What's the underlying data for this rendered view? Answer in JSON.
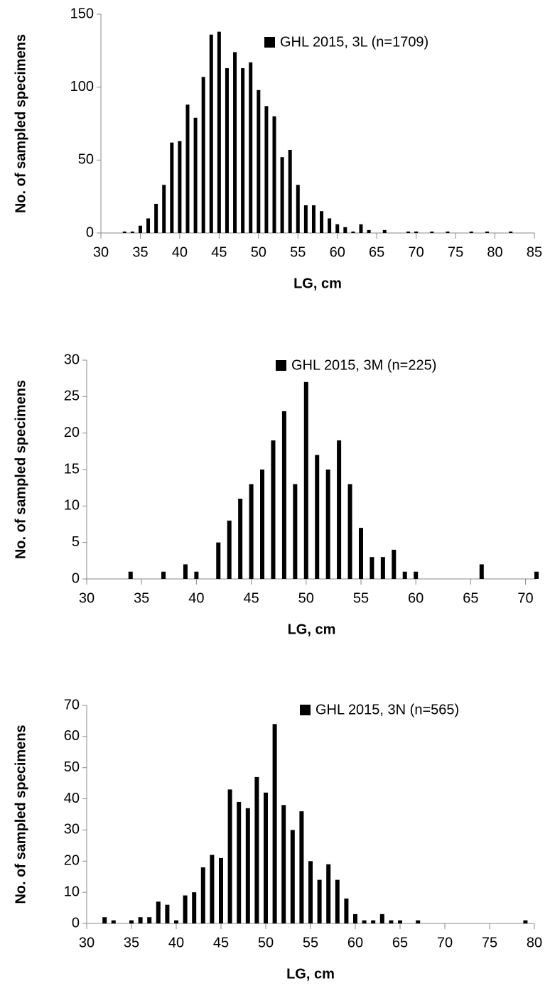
{
  "chart_data": [
    {
      "type": "bar",
      "x_label": "LG, cm",
      "y_label": "No. of sampled specimens",
      "x": [
        33,
        34,
        35,
        36,
        37,
        38,
        39,
        40,
        41,
        42,
        43,
        44,
        45,
        46,
        47,
        48,
        49,
        50,
        51,
        52,
        53,
        54,
        55,
        56,
        57,
        58,
        59,
        60,
        61,
        62,
        63,
        64,
        66,
        69,
        70,
        72,
        74,
        77,
        79,
        82
      ],
      "series": [
        {
          "name": "GHL 2015, 3L (n=1709)",
          "color": "#000000",
          "values": [
            1,
            1,
            5,
            10,
            20,
            33,
            62,
            63,
            88,
            79,
            107,
            136,
            138,
            113,
            124,
            113,
            117,
            98,
            87,
            80,
            52,
            57,
            33,
            19,
            19,
            15,
            10,
            6,
            4,
            1,
            6,
            2,
            2,
            1,
            1,
            1,
            1,
            1,
            1,
            1
          ]
        }
      ],
      "xlim": [
        30,
        85
      ],
      "xticks": [
        30,
        35,
        40,
        45,
        50,
        55,
        60,
        65,
        70,
        75,
        80,
        85
      ],
      "ylim": [
        0,
        150
      ],
      "yticks": [
        0,
        50,
        100,
        150
      ],
      "legend": "top-right"
    },
    {
      "type": "bar",
      "x_label": "LG, cm",
      "y_label": "No. of sampled specimens",
      "x": [
        34,
        37,
        39,
        40,
        42,
        43,
        44,
        45,
        46,
        47,
        48,
        49,
        50,
        51,
        52,
        53,
        54,
        55,
        56,
        57,
        58,
        59,
        60,
        66,
        71
      ],
      "series": [
        {
          "name": "GHL 2015, 3M (n=225)",
          "color": "#000000",
          "values": [
            1,
            1,
            2,
            1,
            5,
            8,
            11,
            13,
            15,
            19,
            23,
            13,
            27,
            17,
            15,
            19,
            13,
            7,
            3,
            3,
            4,
            1,
            1,
            2,
            1
          ]
        }
      ],
      "xlim": [
        30,
        71
      ],
      "xticks": [
        30,
        35,
        40,
        45,
        50,
        55,
        60,
        65,
        70
      ],
      "ylim": [
        0,
        30
      ],
      "yticks": [
        0,
        5,
        10,
        15,
        20,
        25,
        30
      ],
      "legend": "top-right"
    },
    {
      "type": "bar",
      "x_label": "LG, cm",
      "y_label": "No. of sampled specimens",
      "x": [
        32,
        33,
        35,
        36,
        37,
        38,
        39,
        40,
        41,
        42,
        43,
        44,
        45,
        46,
        47,
        48,
        49,
        50,
        51,
        52,
        53,
        54,
        55,
        56,
        57,
        58,
        59,
        60,
        61,
        62,
        63,
        64,
        65,
        67,
        79
      ],
      "series": [
        {
          "name": "GHL 2015, 3N (n=565)",
          "color": "#000000",
          "values": [
            2,
            1,
            1,
            2,
            2,
            7,
            6,
            1,
            9,
            10,
            18,
            22,
            21,
            43,
            39,
            37,
            47,
            42,
            64,
            38,
            30,
            36,
            20,
            14,
            19,
            14,
            8,
            3,
            1,
            1,
            3,
            1,
            1,
            1,
            1
          ]
        }
      ],
      "xlim": [
        30,
        80
      ],
      "xticks": [
        30,
        35,
        40,
        45,
        50,
        55,
        60,
        65,
        70,
        75,
        80
      ],
      "ylim": [
        0,
        70
      ],
      "yticks": [
        0,
        10,
        20,
        30,
        40,
        50,
        60,
        70
      ],
      "legend": "top-right"
    }
  ]
}
